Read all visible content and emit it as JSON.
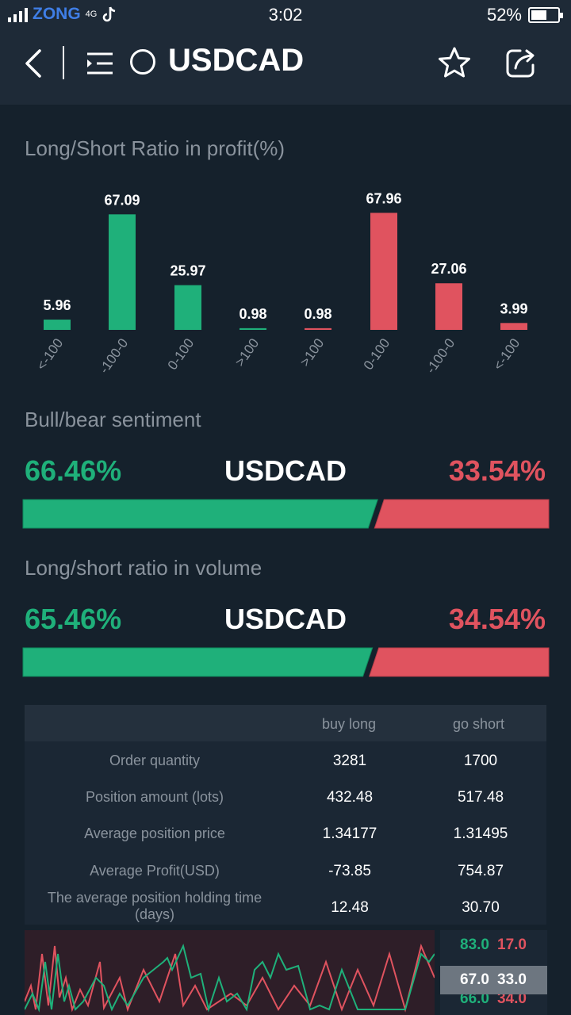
{
  "status_bar": {
    "carrier": "ZONG",
    "network": "4G",
    "time": "3:02",
    "battery_percent": "52%"
  },
  "nav": {
    "title": "USDCAD"
  },
  "profit_ratio": {
    "title": "Long/Short Ratio in profit(%)",
    "chart_data": {
      "type": "bar",
      "categories": [
        "<-100",
        "-100-0",
        "0-100",
        ">100",
        ">100",
        "0-100",
        "-100-0",
        "<-100"
      ],
      "values": [
        5.96,
        67.09,
        25.97,
        0.98,
        0.98,
        67.96,
        27.06,
        3.99
      ],
      "labels": [
        "5.96",
        "67.09",
        "25.97",
        "0.98",
        "0.98",
        "67.96",
        "27.06",
        "3.99"
      ],
      "series_colors": [
        "#1fb07a",
        "#1fb07a",
        "#1fb07a",
        "#1fb07a",
        "#e0535f",
        "#e0535f",
        "#e0535f",
        "#e0535f"
      ],
      "ylim": [
        0,
        70
      ]
    }
  },
  "sentiment": {
    "title": "Bull/bear sentiment",
    "bull": "66.46%",
    "pair": "USDCAD",
    "bear": "33.54%",
    "bull_fraction": 0.6646
  },
  "volume": {
    "title": "Long/short ratio in volume",
    "long": "65.46%",
    "pair": "USDCAD",
    "short": "34.54%",
    "long_fraction": 0.6546
  },
  "stats_table": {
    "headers": [
      "buy long",
      "go short"
    ],
    "rows": [
      {
        "label": "Order quantity",
        "long": "3281",
        "short": "1700"
      },
      {
        "label": "Position amount (lots)",
        "long": "432.48",
        "short": "517.48"
      },
      {
        "label": "Average position price",
        "long": "1.34177",
        "short": "1.31495"
      },
      {
        "label": "Average Profit(USD)",
        "long": "-73.85",
        "short": "754.87"
      },
      {
        "label": "The average position holding time (days)",
        "long": "12.48",
        "short": "30.70"
      }
    ]
  },
  "ratio_list": {
    "rows": [
      {
        "long": "83.0",
        "short": "17.0",
        "selected": false
      },
      {
        "long": "67.0",
        "short": "33.0",
        "selected": true
      },
      {
        "long": "66.0",
        "short": "34.0",
        "selected": false
      }
    ]
  },
  "colors": {
    "long": "#1fb07a",
    "short": "#e0535f",
    "background": "#15212c",
    "header": "#1e2a37"
  }
}
